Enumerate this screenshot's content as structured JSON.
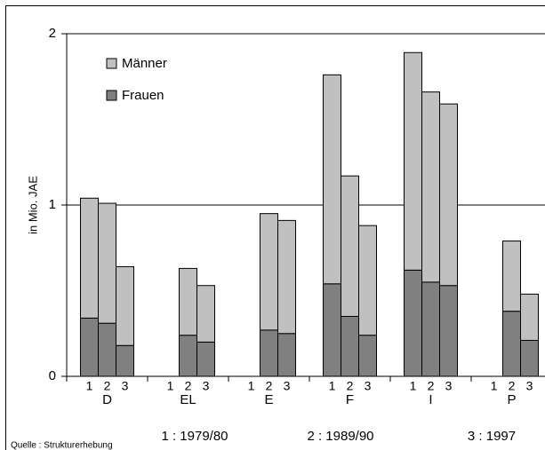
{
  "chart_data": {
    "type": "stacked-bar",
    "y_label": "in Mio. JAE",
    "groups": [
      "D",
      "EL",
      "E",
      "F",
      "I",
      "P"
    ],
    "categories": [
      "1",
      "2",
      "3",
      "1",
      "2",
      "3",
      "1",
      "2",
      "3",
      "1",
      "2",
      "3",
      "1",
      "2",
      "3",
      "1",
      "2",
      "3"
    ],
    "series": [
      {
        "name": "Frauen",
        "color": "#808080",
        "values": [
          0.34,
          0.31,
          0.18,
          null,
          0.24,
          0.2,
          null,
          0.27,
          0.25,
          0.54,
          0.35,
          0.24,
          0.62,
          0.55,
          0.53,
          null,
          0.38,
          0.21
        ]
      },
      {
        "name": "Männer",
        "color": "#c0c0c0",
        "values": [
          0.7,
          0.7,
          0.46,
          null,
          0.39,
          0.33,
          null,
          0.68,
          0.66,
          1.22,
          0.82,
          0.64,
          1.27,
          1.11,
          1.06,
          null,
          0.41,
          0.27
        ]
      }
    ],
    "ylim": [
      0,
      2
    ],
    "yticks": [
      0,
      1,
      2
    ],
    "grid": true,
    "notes": [
      "1 : 1979/80",
      "2 : 1989/90",
      "3 : 1997"
    ],
    "source": "Quelle : Strukturerhebung"
  }
}
